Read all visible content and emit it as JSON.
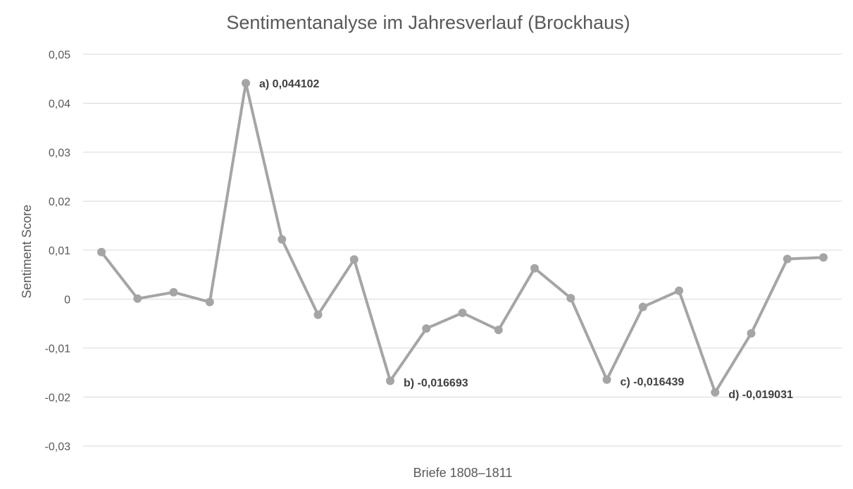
{
  "chart_data": {
    "type": "line",
    "title": "Sentimentanalyse im Jahresverlauf (Brockhaus)",
    "xlabel": "Briefe 1808–1811",
    "ylabel": "Sentiment Score",
    "ylim": [
      -0.03,
      0.05
    ],
    "yticks": [
      0.05,
      0.04,
      0.03,
      0.02,
      0.01,
      0,
      -0.01,
      -0.02,
      -0.03
    ],
    "ytick_labels": [
      "0,05",
      "0,04",
      "0,03",
      "0,02",
      "0,01",
      "0",
      "-0,01",
      "-0,02",
      "-0,03"
    ],
    "grid": true,
    "legend": "none",
    "series_color": "#a5a5a5",
    "series": [
      {
        "values": [
          0.0096,
          0.0001,
          0.0014,
          -0.0006,
          0.044102,
          0.0122,
          -0.0032,
          0.0081,
          -0.016693,
          -0.006,
          -0.0028,
          -0.0063,
          0.0063,
          0.0002,
          -0.016439,
          -0.0016,
          0.0017,
          -0.019031,
          -0.007,
          0.0082,
          0.0085
        ]
      }
    ],
    "annotations": [
      {
        "index": 4,
        "text": "a) 0,044102"
      },
      {
        "index": 8,
        "text": "b) -0,016693"
      },
      {
        "index": 14,
        "text": "c) -0,016439"
      },
      {
        "index": 17,
        "text": "d) -0,019031"
      }
    ]
  }
}
